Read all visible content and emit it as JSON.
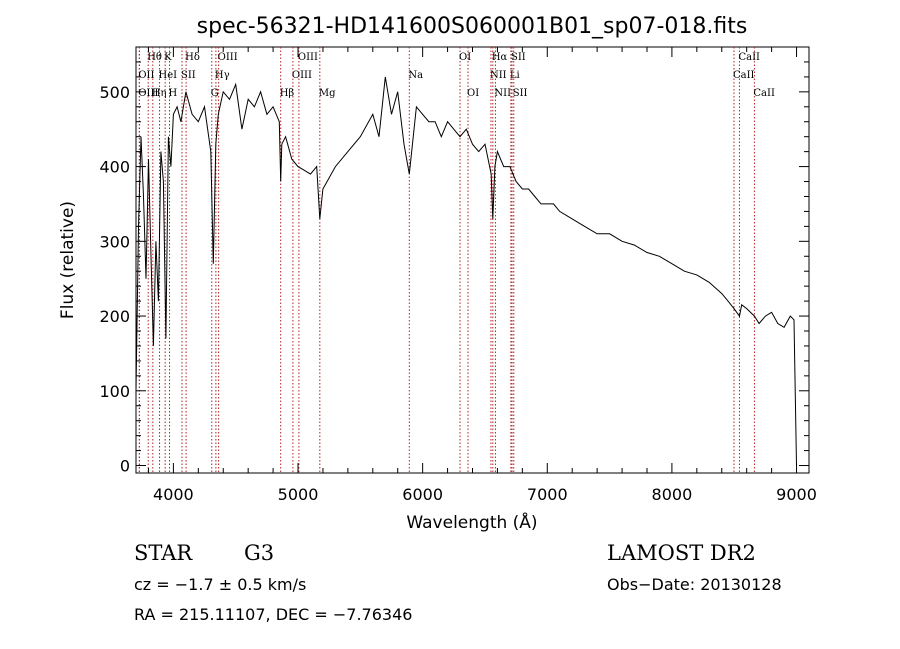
{
  "chart_data": {
    "type": "line",
    "title": "spec-56321-HD141600S060001B01_sp07-018.fits",
    "xlabel": "Wavelength (Å)",
    "ylabel": "Flux (relative)",
    "xlim": [
      3700,
      9100
    ],
    "ylim": [
      -10,
      560
    ],
    "xticks": [
      4000,
      5000,
      6000,
      7000,
      8000,
      9000
    ],
    "yticks": [
      0,
      100,
      200,
      300,
      400,
      500
    ],
    "grid": false,
    "line_color": "#000000",
    "marker_color": "#b22222",
    "series": [
      {
        "x": [
          3700,
          3720,
          3740,
          3760,
          3780,
          3800,
          3820,
          3840,
          3860,
          3880,
          3900,
          3920,
          3940,
          3960,
          3980,
          4000,
          4030,
          4060,
          4100,
          4150,
          4200,
          4250,
          4300,
          4320,
          4340,
          4360,
          4400,
          4450,
          4500,
          4550,
          4600,
          4650,
          4700,
          4750,
          4800,
          4850,
          4861,
          4870,
          4900,
          4950,
          5000,
          5050,
          5100,
          5150,
          5175,
          5200,
          5300,
          5400,
          5500,
          5600,
          5650,
          5700,
          5750,
          5800,
          5850,
          5893,
          5950,
          6000,
          6050,
          6100,
          6150,
          6200,
          6250,
          6300,
          6350,
          6400,
          6450,
          6500,
          6550,
          6563,
          6580,
          6600,
          6650,
          6700,
          6750,
          6800,
          6850,
          6900,
          6950,
          7000,
          7050,
          7100,
          7200,
          7300,
          7400,
          7500,
          7600,
          7700,
          7800,
          7900,
          8000,
          8100,
          8200,
          8300,
          8400,
          8450,
          8498,
          8520,
          8542,
          8560,
          8600,
          8662,
          8700,
          8750,
          8800,
          8850,
          8900,
          8950,
          8980,
          9000
        ],
        "y": [
          100,
          320,
          440,
          360,
          250,
          410,
          280,
          160,
          300,
          220,
          420,
          380,
          170,
          440,
          400,
          470,
          480,
          460,
          500,
          470,
          460,
          480,
          420,
          270,
          430,
          470,
          500,
          490,
          510,
          450,
          490,
          480,
          500,
          470,
          480,
          460,
          380,
          430,
          440,
          410,
          400,
          395,
          390,
          400,
          330,
          370,
          400,
          420,
          440,
          470,
          440,
          520,
          470,
          500,
          430,
          390,
          480,
          470,
          460,
          460,
          440,
          460,
          450,
          440,
          450,
          430,
          420,
          430,
          390,
          330,
          400,
          420,
          400,
          400,
          380,
          370,
          370,
          360,
          350,
          350,
          350,
          340,
          330,
          320,
          310,
          310,
          300,
          295,
          285,
          280,
          270,
          260,
          255,
          245,
          230,
          220,
          210,
          205,
          200,
          215,
          210,
          200,
          190,
          200,
          205,
          190,
          185,
          200,
          195,
          0
        ]
      }
    ],
    "lines": [
      {
        "label": "Hθ",
        "x": 3798,
        "row": 0
      },
      {
        "label": "OII",
        "x": 3727,
        "row": 1
      },
      {
        "label": "OIII",
        "x": 3727,
        "row": 2
      },
      {
        "label": "Hη",
        "x": 3835,
        "row": 2
      },
      {
        "label": "K",
        "x": 3934,
        "row": 0
      },
      {
        "label": "HeI",
        "x": 3889,
        "row": 1
      },
      {
        "label": "H",
        "x": 3969,
        "row": 2
      },
      {
        "label": "SII",
        "x": 4069,
        "row": 1
      },
      {
        "label": "Hδ",
        "x": 4102,
        "row": 0
      },
      {
        "label": "OIII",
        "x": 4363,
        "row": 0
      },
      {
        "label": "Hγ",
        "x": 4341,
        "row": 1
      },
      {
        "label": "G",
        "x": 4308,
        "row": 2
      },
      {
        "label": "Hβ",
        "x": 4861,
        "row": 2
      },
      {
        "label": "OIII",
        "x": 5007,
        "row": 0
      },
      {
        "label": "OIII",
        "x": 4959,
        "row": 1
      },
      {
        "label": "Mg",
        "x": 5175,
        "row": 2
      },
      {
        "label": "Na",
        "x": 5893,
        "row": 1
      },
      {
        "label": "OI",
        "x": 6300,
        "row": 0
      },
      {
        "label": "OI",
        "x": 6364,
        "row": 2
      },
      {
        "label": "Hα",
        "x": 6563,
        "row": 0
      },
      {
        "label": "NII",
        "x": 6548,
        "row": 1
      },
      {
        "label": "NII",
        "x": 6584,
        "row": 2
      },
      {
        "label": "SII",
        "x": 6717,
        "row": 0
      },
      {
        "label": "Li",
        "x": 6708,
        "row": 1
      },
      {
        "label": "SII",
        "x": 6731,
        "row": 2
      },
      {
        "label": "CaII",
        "x": 8542,
        "row": 0
      },
      {
        "label": "CaII",
        "x": 8498,
        "row": 1
      },
      {
        "label": "CaII",
        "x": 8662,
        "row": 2
      }
    ]
  },
  "info": {
    "star_label": "STAR",
    "class_label": "G3",
    "survey": "LAMOST DR2",
    "cz": "cz = −1.7 ± 0.5 km/s",
    "obs_date": "Obs−Date: 20130128",
    "radec": "RA = 215.11107, DEC =  −7.76346"
  }
}
